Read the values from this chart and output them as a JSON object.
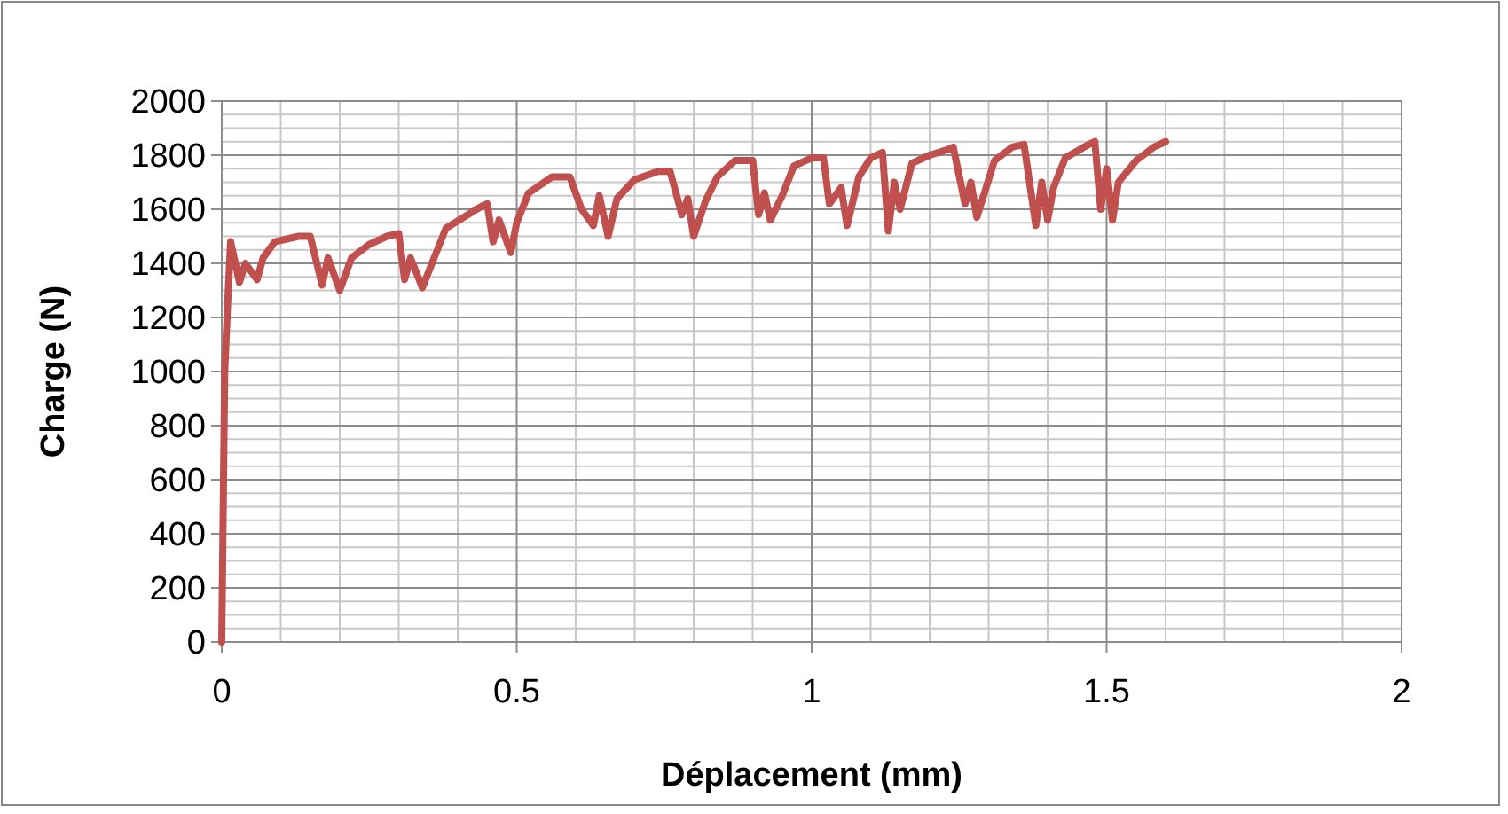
{
  "chart_data": {
    "type": "line",
    "xlabel": "Déplacement (mm)",
    "ylabel": "Charge (N)",
    "xlim": [
      0,
      2
    ],
    "xticks": [
      0,
      0.5,
      1,
      1.5,
      2
    ],
    "ylim": [
      0,
      2000
    ],
    "yticks": [
      0,
      200,
      400,
      600,
      800,
      1000,
      1200,
      1400,
      1600,
      1800,
      2000
    ],
    "grid": true,
    "marker": "none",
    "line_style": "solid",
    "series": [
      {
        "color": "#c0504d",
        "x": [
          0,
          0.005,
          0.01,
          0.015,
          0.03,
          0.04,
          0.06,
          0.07,
          0.09,
          0.13,
          0.15,
          0.17,
          0.18,
          0.2,
          0.22,
          0.25,
          0.28,
          0.3,
          0.31,
          0.32,
          0.34,
          0.36,
          0.38,
          0.41,
          0.44,
          0.45,
          0.46,
          0.47,
          0.49,
          0.5,
          0.52,
          0.56,
          0.59,
          0.61,
          0.63,
          0.64,
          0.655,
          0.67,
          0.7,
          0.74,
          0.76,
          0.78,
          0.79,
          0.8,
          0.82,
          0.84,
          0.87,
          0.9,
          0.91,
          0.92,
          0.93,
          0.95,
          0.97,
          1,
          1.02,
          1.03,
          1.05,
          1.06,
          1.08,
          1.1,
          1.12,
          1.13,
          1.14,
          1.15,
          1.17,
          1.2,
          1.23,
          1.24,
          1.26,
          1.27,
          1.28,
          1.31,
          1.34,
          1.36,
          1.38,
          1.39,
          1.4,
          1.41,
          1.43,
          1.47,
          1.48,
          1.49,
          1.5,
          1.51,
          1.52,
          1.55,
          1.58,
          1.6
        ],
        "values": [
          0,
          1000,
          1250,
          1480,
          1330,
          1400,
          1340,
          1420,
          1480,
          1500,
          1500,
          1320,
          1420,
          1300,
          1420,
          1470,
          1500,
          1510,
          1340,
          1420,
          1310,
          1420,
          1530,
          1570,
          1610,
          1620,
          1480,
          1560,
          1440,
          1550,
          1660,
          1720,
          1720,
          1600,
          1540,
          1650,
          1500,
          1640,
          1710,
          1740,
          1740,
          1580,
          1640,
          1500,
          1630,
          1720,
          1780,
          1780,
          1580,
          1660,
          1560,
          1650,
          1760,
          1790,
          1790,
          1620,
          1680,
          1540,
          1720,
          1790,
          1810,
          1520,
          1700,
          1600,
          1770,
          1800,
          1820,
          1830,
          1620,
          1700,
          1570,
          1780,
          1830,
          1840,
          1540,
          1700,
          1560,
          1680,
          1790,
          1840,
          1850,
          1600,
          1750,
          1560,
          1700,
          1780,
          1830,
          1850
        ]
      }
    ]
  }
}
